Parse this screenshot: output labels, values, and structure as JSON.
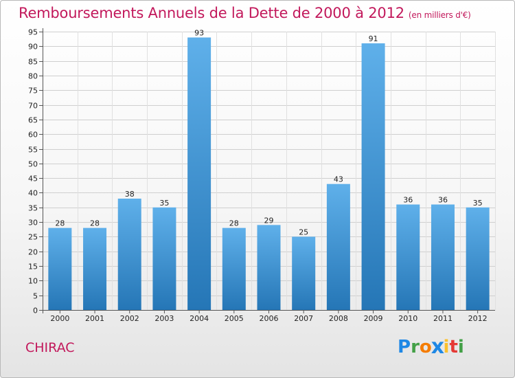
{
  "chart_data": {
    "type": "bar",
    "title": "Remboursements Annuels de la Dette de 2000 à 2012",
    "subtitle": "(en milliers d'€)",
    "categories": [
      "2000",
      "2001",
      "2002",
      "2003",
      "2004",
      "2005",
      "2006",
      "2007",
      "2008",
      "2009",
      "2010",
      "2011",
      "2012"
    ],
    "values": [
      28,
      28,
      38,
      35,
      93,
      28,
      29,
      25,
      43,
      91,
      36,
      36,
      35
    ],
    "ylim": [
      0,
      95
    ],
    "yticks": [
      0,
      5,
      10,
      15,
      20,
      25,
      30,
      35,
      40,
      45,
      50,
      55,
      60,
      65,
      70,
      75,
      80,
      85,
      90,
      95
    ],
    "xlabel": "",
    "ylabel": "",
    "grid": true
  },
  "commune": "CHIRAC",
  "logo": {
    "letters": [
      {
        "ch": "P",
        "color": "#1e88e5"
      },
      {
        "ch": "r",
        "color": "#43a047"
      },
      {
        "ch": "o",
        "color": "#f57c00"
      },
      {
        "ch": "x",
        "color": "#1e88e5"
      },
      {
        "ch": "i",
        "color": "#fbc02d"
      },
      {
        "ch": "t",
        "color": "#e53935"
      },
      {
        "ch": "i",
        "color": "#43a047"
      }
    ]
  },
  "colors": {
    "accent": "#c2185b",
    "bar_top": "#5fb0ea",
    "bar_bottom": "#2576b6"
  }
}
